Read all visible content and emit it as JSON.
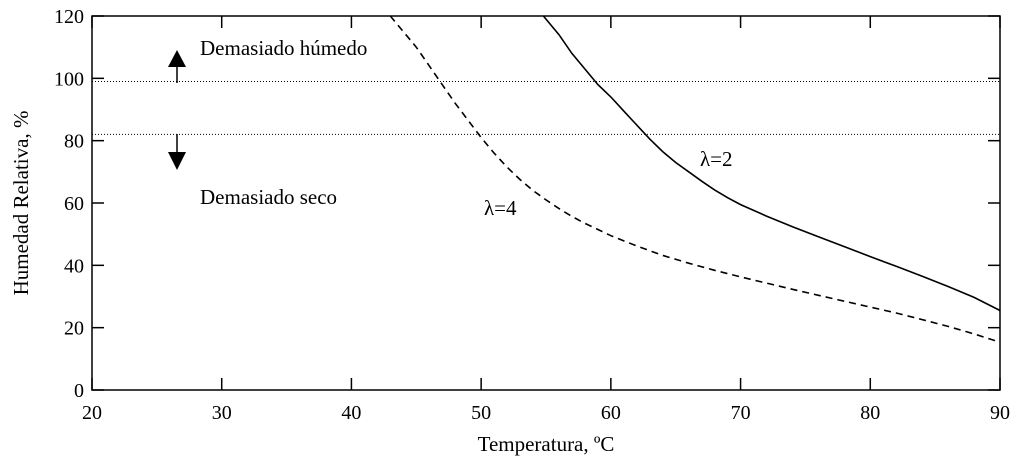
{
  "chart_data": {
    "type": "line",
    "xlabel": "Temperatura, ºC",
    "ylabel": "Humedad Relativa, %",
    "xlim": [
      20,
      90
    ],
    "ylim": [
      0,
      120
    ],
    "x_ticks": [
      "20",
      "30",
      "40",
      "50",
      "60",
      "70",
      "80",
      "90"
    ],
    "y_ticks": [
      "0",
      "20",
      "40",
      "60",
      "80",
      "100",
      "120"
    ],
    "grid": false,
    "series": [
      {
        "name": "λ=2",
        "style": "solid",
        "color": "#000000",
        "points": [
          [
            54.8,
            120
          ],
          [
            56,
            114
          ],
          [
            57,
            108
          ],
          [
            58,
            103
          ],
          [
            59,
            98
          ],
          [
            60,
            94
          ],
          [
            61,
            89.5
          ],
          [
            62,
            85
          ],
          [
            63,
            80.5
          ],
          [
            64,
            76.5
          ],
          [
            65,
            73
          ],
          [
            66,
            70
          ],
          [
            67,
            67
          ],
          [
            68,
            64.2
          ],
          [
            69,
            61.7
          ],
          [
            70,
            59.5
          ],
          [
            72,
            55.8
          ],
          [
            74,
            52.4
          ],
          [
            76,
            49.2
          ],
          [
            78,
            46
          ],
          [
            80,
            42.8
          ],
          [
            82,
            39.7
          ],
          [
            84,
            36.5
          ],
          [
            86,
            33.2
          ],
          [
            88,
            29.7
          ],
          [
            90,
            25.5
          ]
        ]
      },
      {
        "name": "λ=4",
        "style": "dashed",
        "color": "#000000",
        "points": [
          [
            43,
            120
          ],
          [
            44,
            115
          ],
          [
            45,
            110
          ],
          [
            46,
            104
          ],
          [
            47,
            98
          ],
          [
            48,
            92
          ],
          [
            49,
            86.5
          ],
          [
            50,
            81
          ],
          [
            51,
            76
          ],
          [
            52,
            71.5
          ],
          [
            53,
            67.5
          ],
          [
            54,
            64
          ],
          [
            55,
            61
          ],
          [
            56,
            58.2
          ],
          [
            57,
            55.7
          ],
          [
            58,
            53.5
          ],
          [
            60,
            49.5
          ],
          [
            62,
            46.2
          ],
          [
            64,
            43.2
          ],
          [
            66,
            40.7
          ],
          [
            68,
            38.4
          ],
          [
            70,
            36.3
          ],
          [
            72,
            34.3
          ],
          [
            74,
            32.3
          ],
          [
            76,
            30.4
          ],
          [
            78,
            28.5
          ],
          [
            80,
            26.6
          ],
          [
            82,
            24.7
          ],
          [
            84,
            22.6
          ],
          [
            86,
            20.4
          ],
          [
            88,
            18
          ],
          [
            90,
            15.3
          ]
        ]
      }
    ],
    "reference_lines": [
      {
        "y": 99,
        "style": "dotted"
      },
      {
        "y": 82,
        "style": "dotted"
      }
    ],
    "annotations": [
      {
        "text": "Demasiado húmedo",
        "arrow": "up"
      },
      {
        "text": "Demasiado seco",
        "arrow": "down"
      },
      {
        "text": "λ=2"
      },
      {
        "text": "λ=4"
      }
    ]
  }
}
